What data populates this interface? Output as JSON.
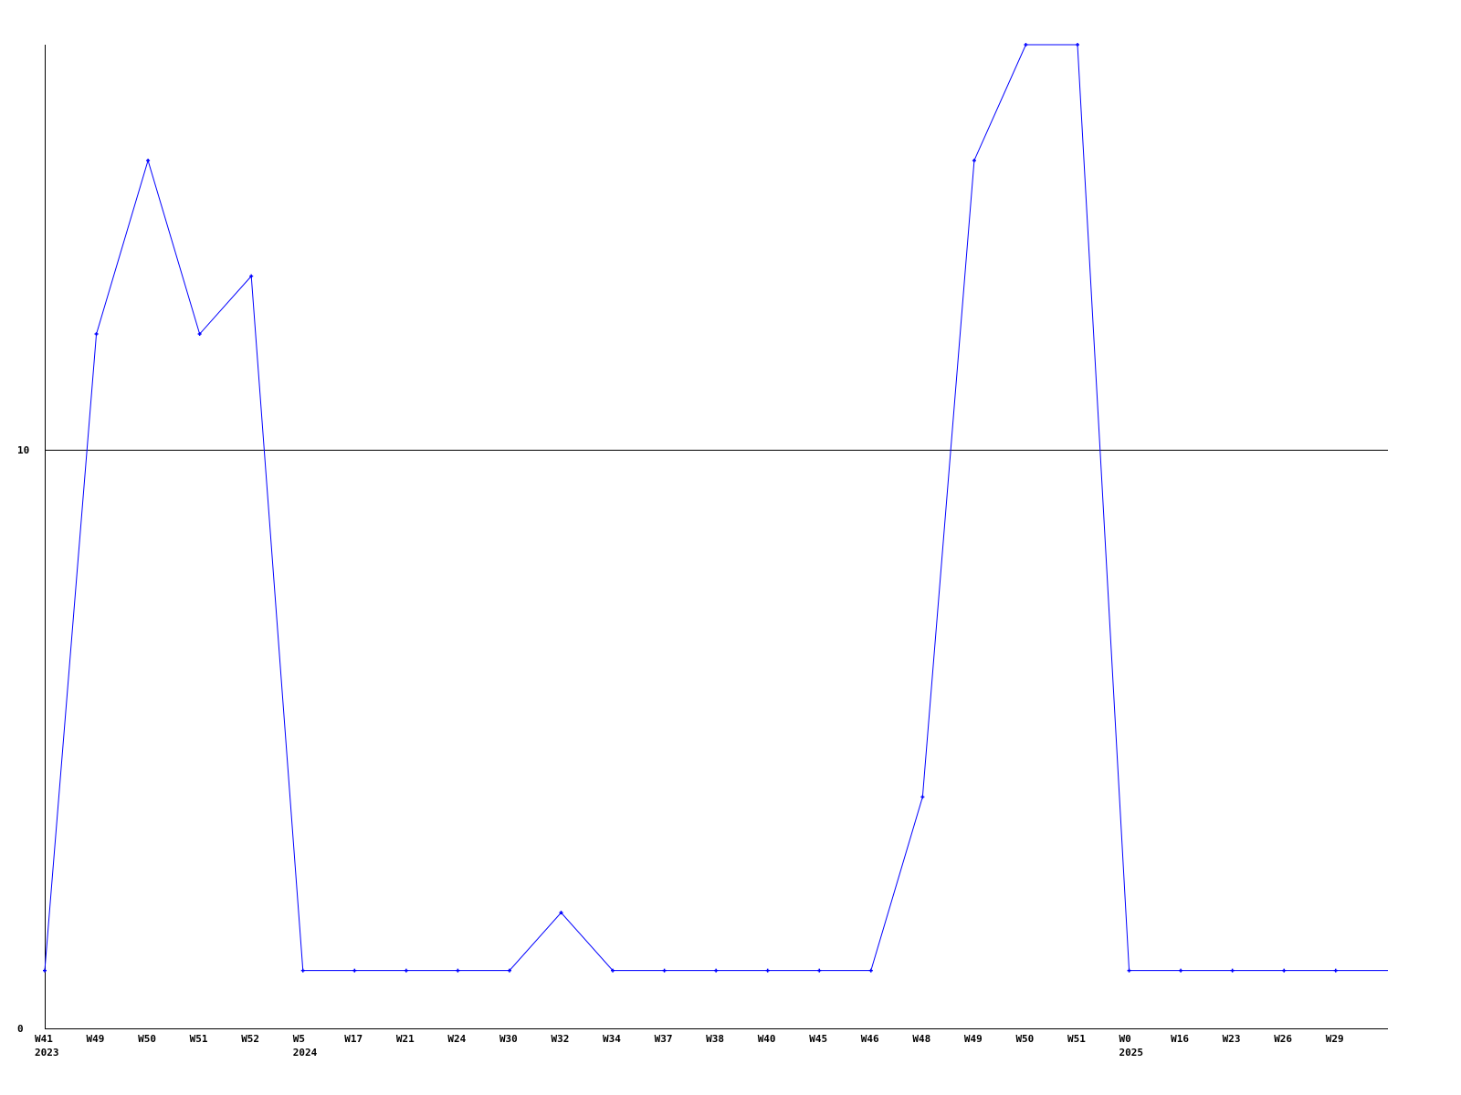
{
  "chart_data": {
    "type": "line",
    "title": "",
    "xlabel": "",
    "ylabel": "",
    "ylim": [
      0,
      17
    ],
    "yticks": [
      0,
      10
    ],
    "grid": "horizontal line at 10",
    "legend": "none",
    "colors": {
      "series": "#0000ff",
      "axis": "#000000"
    },
    "categories": [
      "W41",
      "W49",
      "W50",
      "W51",
      "W52",
      "W5",
      "W17",
      "W21",
      "W24",
      "W30",
      "W32",
      "W34",
      "W37",
      "W38",
      "W40",
      "W45",
      "W46",
      "W48",
      "W49",
      "W50",
      "W51",
      "W0",
      "W16",
      "W23",
      "W26",
      "W29"
    ],
    "year_labels": [
      {
        "index": 0,
        "label": "2023"
      },
      {
        "index": 5,
        "label": "2024"
      },
      {
        "index": 21,
        "label": "2025"
      }
    ],
    "series": [
      {
        "values": [
          1,
          12,
          15,
          12,
          13,
          1,
          1,
          1,
          1,
          1,
          2,
          1,
          1,
          1,
          1,
          1,
          1,
          4,
          15,
          17,
          17,
          1,
          1,
          1,
          1,
          1
        ]
      }
    ]
  }
}
